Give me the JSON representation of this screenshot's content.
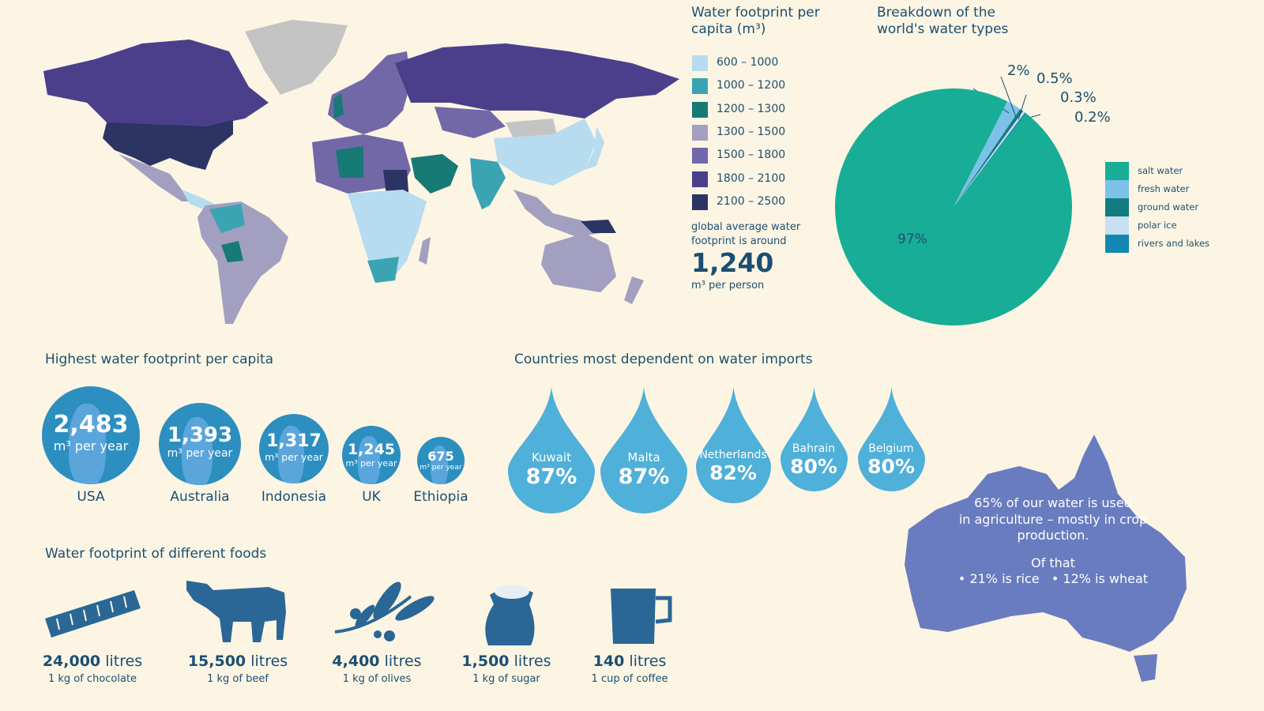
{
  "map_legend": {
    "title": "Water footprint per capita (m³)",
    "items": [
      {
        "label": "600 – 1000",
        "color": "#b7dcef"
      },
      {
        "label": "1000 – 1200",
        "color": "#3ba4b3"
      },
      {
        "label": "1200 – 1300",
        "color": "#177a74"
      },
      {
        "label": "1300 – 1500",
        "color": "#a29fc0"
      },
      {
        "label": "1500 – 1800",
        "color": "#7268a8"
      },
      {
        "label": "1800 – 2100",
        "color": "#4b3f8c"
      },
      {
        "label": "2100 – 2500",
        "color": "#2c3464"
      }
    ],
    "global_text": "global average water footprint is around",
    "global_value": "1,240",
    "global_unit": "m³ per person"
  },
  "chart_data": {
    "type": "pie",
    "title": "Breakdown of the world's water types",
    "legend_position": "right",
    "slices": [
      {
        "name": "salt water",
        "value": 97,
        "label": "97%",
        "color": "#17ad96"
      },
      {
        "name": "fresh water",
        "value": 2,
        "label": "2%",
        "color": "#7cc1e8"
      },
      {
        "name": "ground water",
        "value": 0.5,
        "label": "0.5%",
        "color": "#137c80"
      },
      {
        "name": "polar ice",
        "value": 0.3,
        "label": "0.3%",
        "color": "#c7e0f2"
      },
      {
        "name": "rivers and lakes",
        "value": 0.2,
        "label": "0.2%",
        "color": "#1287b3"
      }
    ]
  },
  "highest": {
    "title": "Highest water footprint per capita",
    "unit": "m³ per year",
    "items": [
      {
        "country": "USA",
        "value": "2,483"
      },
      {
        "country": "Australia",
        "value": "1,393"
      },
      {
        "country": "Indonesia",
        "value": "1,317"
      },
      {
        "country": "UK",
        "value": "1,245"
      },
      {
        "country": "Ethiopia",
        "value": "675"
      }
    ]
  },
  "imports": {
    "title": "Countries most dependent on water imports",
    "items": [
      {
        "country": "Kuwait",
        "value": "87%"
      },
      {
        "country": "Malta",
        "value": "87%"
      },
      {
        "country": "Netherlands",
        "value": "82%"
      },
      {
        "country": "Bahrain",
        "value": "80%"
      },
      {
        "country": "Belgium",
        "value": "80%"
      }
    ]
  },
  "australia": {
    "line1": "65% of our water is used",
    "line2": "in agriculture – mostly in crop",
    "line3": "production.",
    "line4": "Of that",
    "line5": "• 21% is rice   • 12% is wheat"
  },
  "foods": {
    "title": "Water footprint of different foods",
    "unit": "litres",
    "items": [
      {
        "amount": "24,000",
        "desc": "1 kg of chocolate",
        "icon": "chocolate-icon"
      },
      {
        "amount": "15,500",
        "desc": "1 kg of beef",
        "icon": "cow-icon"
      },
      {
        "amount": "4,400",
        "desc": "1 kg of olives",
        "icon": "olive-branch-icon"
      },
      {
        "amount": "1,500",
        "desc": "1 kg of sugar",
        "icon": "sugar-bag-icon"
      },
      {
        "amount": "140",
        "desc": "1 cup of coffee",
        "icon": "mug-icon"
      }
    ]
  }
}
